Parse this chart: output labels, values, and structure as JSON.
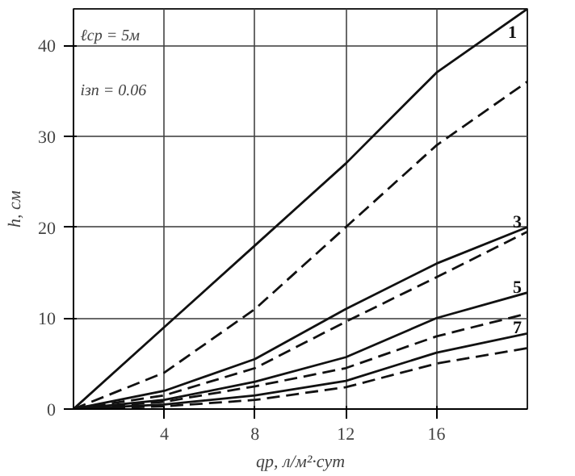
{
  "chart_data": {
    "type": "line",
    "xlabel": "qр, л/м²·сут",
    "ylabel": "h, см",
    "annotations": [
      "ℓср = 5м",
      "iзп = 0.06"
    ],
    "x": [
      0,
      4,
      8,
      12,
      16,
      20
    ],
    "series": [
      {
        "name": "1",
        "color": "#111111",
        "line_style": "solid",
        "values": [
          0,
          9,
          18,
          27,
          37,
          44
        ]
      },
      {
        "color": "#111111",
        "line_style": "dashed",
        "values": [
          0,
          4,
          11,
          20,
          29,
          36
        ]
      },
      {
        "name": "3",
        "color": "#111111",
        "line_style": "solid",
        "values": [
          0,
          2,
          5.5,
          11,
          16,
          20
        ]
      },
      {
        "color": "#111111",
        "line_style": "dashed",
        "values": [
          0,
          1.5,
          4.5,
          9.6,
          14.5,
          19.5
        ]
      },
      {
        "name": "5",
        "color": "#111111",
        "line_style": "solid",
        "values": [
          0,
          1,
          3,
          5.7,
          10,
          12.8
        ]
      },
      {
        "color": "#111111",
        "line_style": "dashed",
        "values": [
          0,
          0.8,
          2.5,
          4.5,
          8,
          10.5
        ]
      },
      {
        "name": "7",
        "color": "#111111",
        "line_style": "solid",
        "values": [
          0,
          0.5,
          1.5,
          3.1,
          6.2,
          8.3
        ]
      },
      {
        "color": "#111111",
        "line_style": "dashed",
        "values": [
          0,
          0.3,
          1,
          2.4,
          5,
          6.7
        ]
      }
    ],
    "xlim": [
      0,
      20
    ],
    "ylim": [
      0,
      44
    ],
    "xticks": [
      4,
      8,
      12,
      16
    ],
    "yticks": [
      0,
      10,
      20,
      30,
      40
    ],
    "grid": true,
    "marker": "none"
  }
}
